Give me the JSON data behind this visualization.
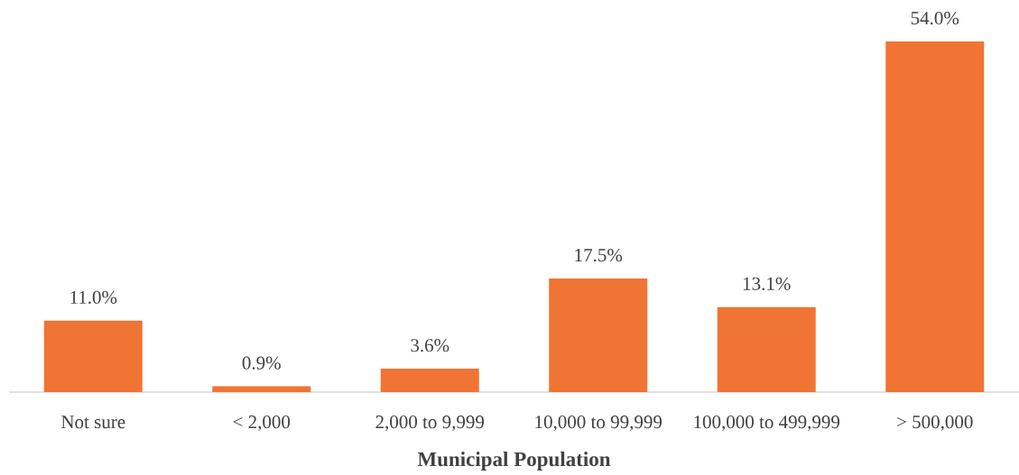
{
  "chart_data": {
    "type": "bar",
    "xlabel": "Municipal Population",
    "categories": [
      "Not sure",
      "< 2,000",
      "2,000 to 9,999",
      "10,000 to 99,999",
      "100,000 to 499,999",
      "> 500,000"
    ],
    "values": [
      11.0,
      0.9,
      3.6,
      17.5,
      13.1,
      54.0
    ],
    "value_labels": [
      "11.0%",
      "0.9%",
      "3.6%",
      "17.5%",
      "13.1%",
      "54.0%"
    ],
    "color": "#f07434"
  }
}
